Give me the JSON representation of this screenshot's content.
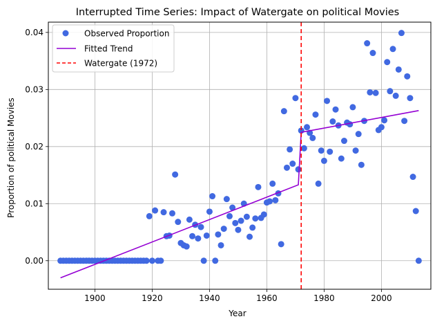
{
  "chart_data": {
    "type": "scatter",
    "title": "Interrupted Time Series: Impact of Watergate on political Movies",
    "xlabel": "Year",
    "ylabel": "Proportion of political Movies",
    "xlim": [
      1883.75,
      2017.25
    ],
    "ylim": [
      -0.005,
      0.0418
    ],
    "xticks": [
      1900,
      1920,
      1940,
      1960,
      1980,
      2000
    ],
    "yticks": [
      0.0,
      0.01,
      0.02,
      0.03,
      0.04
    ],
    "xtick_labels": [
      "1900",
      "1920",
      "1940",
      "1960",
      "1980",
      "2000"
    ],
    "ytick_labels": [
      "0.00",
      "0.01",
      "0.02",
      "0.03",
      "0.04"
    ],
    "grid": true,
    "legend_position": "top-left",
    "legend": [
      {
        "label": "Observed Proportion",
        "kind": "marker",
        "color": "#4169e1"
      },
      {
        "label": "Fitted Trend",
        "kind": "line",
        "color": "#9400d3"
      },
      {
        "label": "Watergate (1972)",
        "kind": "dashed",
        "color": "#ff0000"
      }
    ],
    "intervention_x": 1972,
    "series": [
      {
        "name": "Observed Proportion",
        "kind": "scatter",
        "color": "#4169e1",
        "points": [
          [
            1888,
            0
          ],
          [
            1889,
            0
          ],
          [
            1890,
            0
          ],
          [
            1891,
            0
          ],
          [
            1892,
            0
          ],
          [
            1893,
            0
          ],
          [
            1894,
            0
          ],
          [
            1895,
            0
          ],
          [
            1896,
            0
          ],
          [
            1897,
            0
          ],
          [
            1898,
            0
          ],
          [
            1899,
            0
          ],
          [
            1900,
            0
          ],
          [
            1901,
            0
          ],
          [
            1902,
            0
          ],
          [
            1903,
            0
          ],
          [
            1904,
            0
          ],
          [
            1905,
            0
          ],
          [
            1906,
            0
          ],
          [
            1907,
            0
          ],
          [
            1908,
            0
          ],
          [
            1909,
            0
          ],
          [
            1910,
            0
          ],
          [
            1911,
            0
          ],
          [
            1912,
            0
          ],
          [
            1913,
            0
          ],
          [
            1914,
            0
          ],
          [
            1915,
            0
          ],
          [
            1916,
            0
          ],
          [
            1917,
            0
          ],
          [
            1918,
            0
          ],
          [
            1919,
            0.0078
          ],
          [
            1920,
            0
          ],
          [
            1921,
            0.0088
          ],
          [
            1922,
            0
          ],
          [
            1923,
            0
          ],
          [
            1924,
            0.0085
          ],
          [
            1925,
            0.0043
          ],
          [
            1926,
            0.0044
          ],
          [
            1927,
            0.0083
          ],
          [
            1928,
            0.0151
          ],
          [
            1929,
            0.0068
          ],
          [
            1930,
            0.0031
          ],
          [
            1931,
            0.0027
          ],
          [
            1932,
            0.0025
          ],
          [
            1933,
            0.0072
          ],
          [
            1934,
            0.0043
          ],
          [
            1935,
            0.0063
          ],
          [
            1936,
            0.0039
          ],
          [
            1937,
            0.0059
          ],
          [
            1938,
            0
          ],
          [
            1939,
            0.0044
          ],
          [
            1940,
            0.0086
          ],
          [
            1941,
            0.0113
          ],
          [
            1942,
            0
          ],
          [
            1943,
            0.0046
          ],
          [
            1944,
            0.0027
          ],
          [
            1945,
            0.0056
          ],
          [
            1946,
            0.0108
          ],
          [
            1947,
            0.0078
          ],
          [
            1948,
            0.0093
          ],
          [
            1949,
            0.0066
          ],
          [
            1950,
            0.0054
          ],
          [
            1951,
            0.007
          ],
          [
            1952,
            0.01
          ],
          [
            1953,
            0.0077
          ],
          [
            1954,
            0.0042
          ],
          [
            1955,
            0.0058
          ],
          [
            1956,
            0.0074
          ],
          [
            1957,
            0.0129
          ],
          [
            1958,
            0.0075
          ],
          [
            1959,
            0.0081
          ],
          [
            1960,
            0.0102
          ],
          [
            1961,
            0.0104
          ],
          [
            1962,
            0.0135
          ],
          [
            1963,
            0.0106
          ],
          [
            1964,
            0.0118
          ],
          [
            1965,
            0.0029
          ],
          [
            1966,
            0.0262
          ],
          [
            1967,
            0.0163
          ],
          [
            1968,
            0.0195
          ],
          [
            1969,
            0.017
          ],
          [
            1970,
            0.0285
          ],
          [
            1971,
            0.016
          ],
          [
            1972,
            0.0228
          ],
          [
            1973,
            0.0197
          ],
          [
            1974,
            0.0234
          ],
          [
            1975,
            0.0224
          ],
          [
            1976,
            0.0215
          ],
          [
            1977,
            0.0256
          ],
          [
            1978,
            0.0135
          ],
          [
            1979,
            0.0193
          ],
          [
            1980,
            0.0175
          ],
          [
            1981,
            0.028
          ],
          [
            1982,
            0.0191
          ],
          [
            1983,
            0.0244
          ],
          [
            1984,
            0.0265
          ],
          [
            1985,
            0.0237
          ],
          [
            1986,
            0.0179
          ],
          [
            1987,
            0.021
          ],
          [
            1988,
            0.0242
          ],
          [
            1989,
            0.0239
          ],
          [
            1990,
            0.0269
          ],
          [
            1991,
            0.0193
          ],
          [
            1992,
            0.0222
          ],
          [
            1993,
            0.0168
          ],
          [
            1994,
            0.0245
          ],
          [
            1995,
            0.0381
          ],
          [
            1996,
            0.0295
          ],
          [
            1997,
            0.0364
          ],
          [
            1998,
            0.0294
          ],
          [
            1999,
            0.0229
          ],
          [
            2000,
            0.0234
          ],
          [
            2001,
            0.0246
          ],
          [
            2002,
            0.0348
          ],
          [
            2003,
            0.0297
          ],
          [
            2004,
            0.0371
          ],
          [
            2005,
            0.0289
          ],
          [
            2006,
            0.0335
          ],
          [
            2007,
            0.0399
          ],
          [
            2008,
            0.0245
          ],
          [
            2009,
            0.0323
          ],
          [
            2010,
            0.0285
          ],
          [
            2011,
            0.0147
          ],
          [
            2012,
            0.0087
          ],
          [
            2013,
            0
          ]
        ]
      },
      {
        "name": "Fitted Trend",
        "kind": "line",
        "color": "#9400d3",
        "points": [
          [
            1888,
            -0.003
          ],
          [
            1971,
            0.0133
          ],
          [
            1972,
            0.0225
          ],
          [
            2013,
            0.0263
          ]
        ]
      }
    ]
  }
}
